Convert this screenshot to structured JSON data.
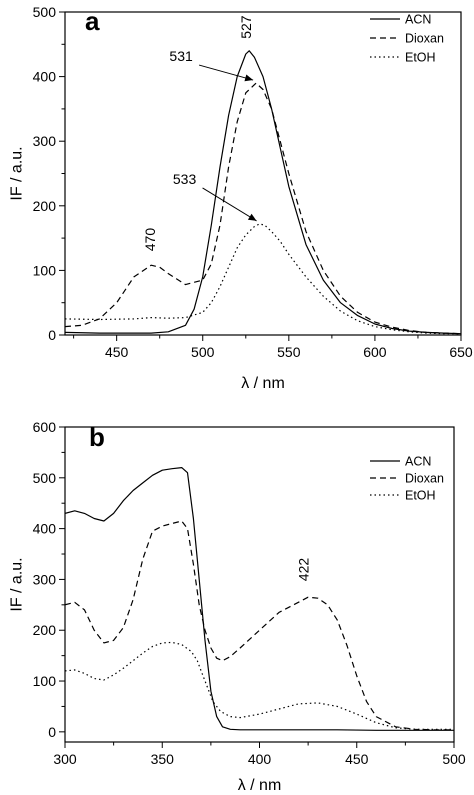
{
  "chart_data": [
    {
      "type": "line",
      "panel_label": "a",
      "xlabel": "λ / nm",
      "ylabel": "IF / a.u.",
      "xlim": [
        420,
        650
      ],
      "ylim": [
        0,
        500
      ],
      "xticks": [
        450,
        500,
        550,
        600,
        650
      ],
      "yticks": [
        0,
        100,
        200,
        300,
        400,
        500
      ],
      "legend_position": "top-right",
      "series": [
        {
          "name": "ACN",
          "style": "solid",
          "x": [
            420,
            440,
            460,
            470,
            480,
            490,
            495,
            500,
            505,
            510,
            515,
            520,
            525,
            527,
            530,
            535,
            540,
            545,
            550,
            560,
            570,
            580,
            590,
            600,
            610,
            620,
            630,
            640,
            650
          ],
          "values": [
            4,
            3,
            3,
            3,
            5,
            15,
            40,
            90,
            170,
            260,
            340,
            400,
            435,
            440,
            430,
            400,
            350,
            290,
            230,
            140,
            85,
            50,
            30,
            17,
            10,
            6,
            4,
            3,
            2
          ]
        },
        {
          "name": "Dioxan",
          "style": "dashed",
          "x": [
            420,
            430,
            440,
            450,
            460,
            470,
            475,
            480,
            490,
            500,
            505,
            510,
            515,
            520,
            525,
            531,
            535,
            540,
            545,
            550,
            560,
            570,
            580,
            590,
            600,
            610,
            620,
            630,
            640,
            650
          ],
          "values": [
            13,
            15,
            25,
            50,
            90,
            108,
            105,
            95,
            78,
            85,
            110,
            170,
            260,
            330,
            375,
            390,
            380,
            350,
            300,
            250,
            160,
            100,
            60,
            35,
            20,
            12,
            7,
            4,
            3,
            2
          ]
        },
        {
          "name": "EtOH",
          "style": "dotted",
          "x": [
            420,
            440,
            460,
            470,
            480,
            490,
            500,
            505,
            510,
            515,
            520,
            525,
            530,
            533,
            536,
            540,
            545,
            550,
            560,
            570,
            580,
            590,
            600,
            610,
            620,
            630,
            640,
            650
          ],
          "values": [
            25,
            24,
            25,
            27,
            26,
            27,
            35,
            50,
            75,
            105,
            135,
            155,
            168,
            172,
            170,
            160,
            145,
            125,
            90,
            60,
            37,
            22,
            13,
            8,
            5,
            3,
            2,
            2
          ]
        }
      ],
      "annotations": [
        {
          "text": "527",
          "x": 527,
          "y": 440
        },
        {
          "text": "531",
          "x": 531,
          "y": 390
        },
        {
          "text": "533",
          "x": 533,
          "y": 172
        },
        {
          "text": "470",
          "x": 470,
          "y": 108
        }
      ]
    },
    {
      "type": "line",
      "panel_label": "b",
      "xlabel": "λ / nm",
      "ylabel": "IF / a.u.",
      "xlim": [
        300,
        500
      ],
      "ylim": [
        -20,
        600
      ],
      "xticks": [
        300,
        350,
        400,
        450,
        500
      ],
      "yticks": [
        0,
        100,
        200,
        300,
        400,
        500,
        600
      ],
      "legend_position": "top-right",
      "series": [
        {
          "name": "ACN",
          "style": "solid",
          "x": [
            300,
            305,
            310,
            315,
            320,
            325,
            330,
            335,
            340,
            345,
            350,
            355,
            360,
            363,
            366,
            369,
            372,
            375,
            378,
            381,
            385,
            390,
            400,
            420,
            440,
            460,
            480,
            500
          ],
          "values": [
            430,
            435,
            430,
            420,
            415,
            430,
            455,
            475,
            490,
            505,
            515,
            518,
            520,
            510,
            420,
            300,
            180,
            80,
            30,
            10,
            5,
            4,
            4,
            4,
            4,
            3,
            3,
            3
          ]
        },
        {
          "name": "Dioxan",
          "style": "dashed",
          "x": [
            300,
            305,
            310,
            315,
            320,
            325,
            330,
            335,
            340,
            345,
            350,
            355,
            360,
            363,
            366,
            369,
            372,
            375,
            378,
            381,
            385,
            390,
            400,
            410,
            420,
            425,
            430,
            435,
            440,
            445,
            450,
            455,
            460,
            470,
            480,
            490,
            500
          ],
          "values": [
            250,
            255,
            240,
            200,
            175,
            180,
            205,
            260,
            340,
            395,
            405,
            410,
            415,
            400,
            330,
            250,
            200,
            165,
            145,
            140,
            148,
            165,
            200,
            235,
            255,
            265,
            263,
            250,
            220,
            170,
            110,
            60,
            30,
            10,
            5,
            4,
            4
          ]
        },
        {
          "name": "EtOH",
          "style": "dotted",
          "x": [
            300,
            305,
            310,
            315,
            320,
            325,
            330,
            335,
            340,
            345,
            350,
            355,
            360,
            365,
            368,
            370,
            373,
            376,
            380,
            385,
            390,
            400,
            410,
            420,
            430,
            440,
            450,
            460,
            470,
            480,
            490,
            500
          ],
          "values": [
            120,
            122,
            115,
            105,
            102,
            112,
            125,
            140,
            155,
            168,
            175,
            176,
            172,
            158,
            140,
            120,
            90,
            60,
            40,
            30,
            28,
            35,
            45,
            55,
            57,
            50,
            35,
            18,
            8,
            5,
            5,
            5
          ]
        }
      ],
      "annotations": [
        {
          "text": "422",
          "x": 422,
          "y": 265
        }
      ]
    }
  ]
}
